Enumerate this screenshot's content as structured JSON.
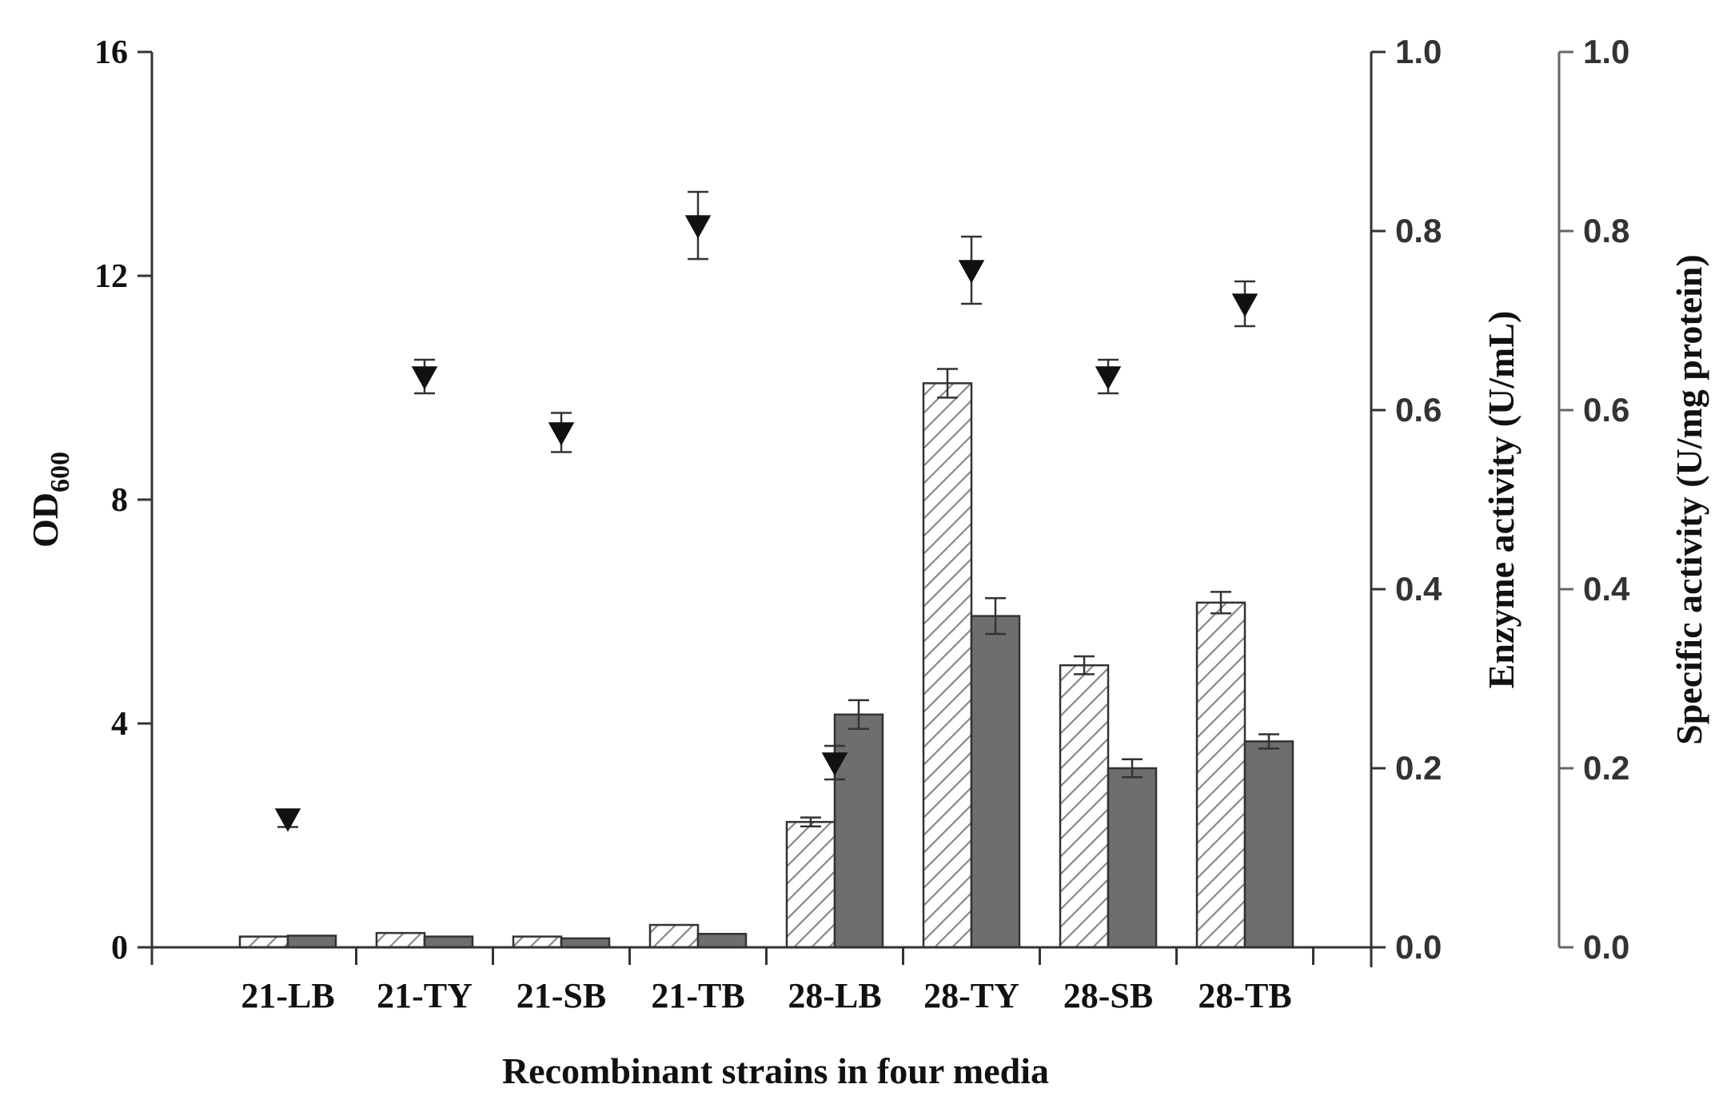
{
  "chart_data": {
    "type": "bar",
    "categories": [
      "21-LB",
      "21-TY",
      "21-SB",
      "21-TB",
      "28-LB",
      "28-TY",
      "28-SB",
      "28-TB"
    ],
    "series": [
      {
        "kind": "bar",
        "axis": "enzyme",
        "style": "hatched",
        "values": [
          0.012,
          0.016,
          0.012,
          0.025,
          0.14,
          0.63,
          0.315,
          0.385
        ],
        "errors": [
          0.002,
          0.002,
          0.002,
          0.002,
          0.005,
          0.016,
          0.01,
          0.012
        ]
      },
      {
        "kind": "bar",
        "axis": "specific",
        "style": "solid",
        "values": [
          0.013,
          0.012,
          0.01,
          0.015,
          0.26,
          0.37,
          0.2,
          0.23
        ],
        "errors": [
          0.001,
          0.001,
          0.001,
          0.001,
          0.016,
          0.02,
          0.01,
          0.008
        ]
      },
      {
        "kind": "scatter",
        "axis": "od",
        "marker": "triangle-down",
        "values": [
          2.3,
          10.2,
          9.2,
          12.9,
          3.3,
          12.1,
          10.2,
          11.5
        ],
        "errors": [
          0.15,
          0.3,
          0.35,
          0.6,
          0.3,
          0.6,
          0.3,
          0.4
        ]
      }
    ],
    "axes": {
      "od": {
        "label_main": "OD",
        "label_sub": "600",
        "ylim": [
          0,
          16
        ],
        "ticks": [
          "0",
          "4",
          "8",
          "12",
          "16"
        ]
      },
      "enzyme": {
        "label": "Enzyme activity (U/mL)",
        "ylim": [
          0,
          1.0
        ],
        "ticks": [
          "0.0",
          "0.2",
          "0.4",
          "0.6",
          "0.8",
          "1.0"
        ]
      },
      "specific": {
        "label": "Specific activity (U/mg protein)",
        "ylim": [
          0,
          1.0
        ],
        "ticks": [
          "0.0",
          "0.2",
          "0.4",
          "0.6",
          "0.8",
          "1.0"
        ]
      }
    },
    "xlabel": "Recombinant strains in four media",
    "grid": false,
    "colors": {
      "axis": "#333333",
      "axis_right": "#666666",
      "solid_bar": "#6e6e6e",
      "hatch_bar_fill": "#ffffff",
      "hatch_line": "#888888",
      "marker": "#111111"
    }
  }
}
